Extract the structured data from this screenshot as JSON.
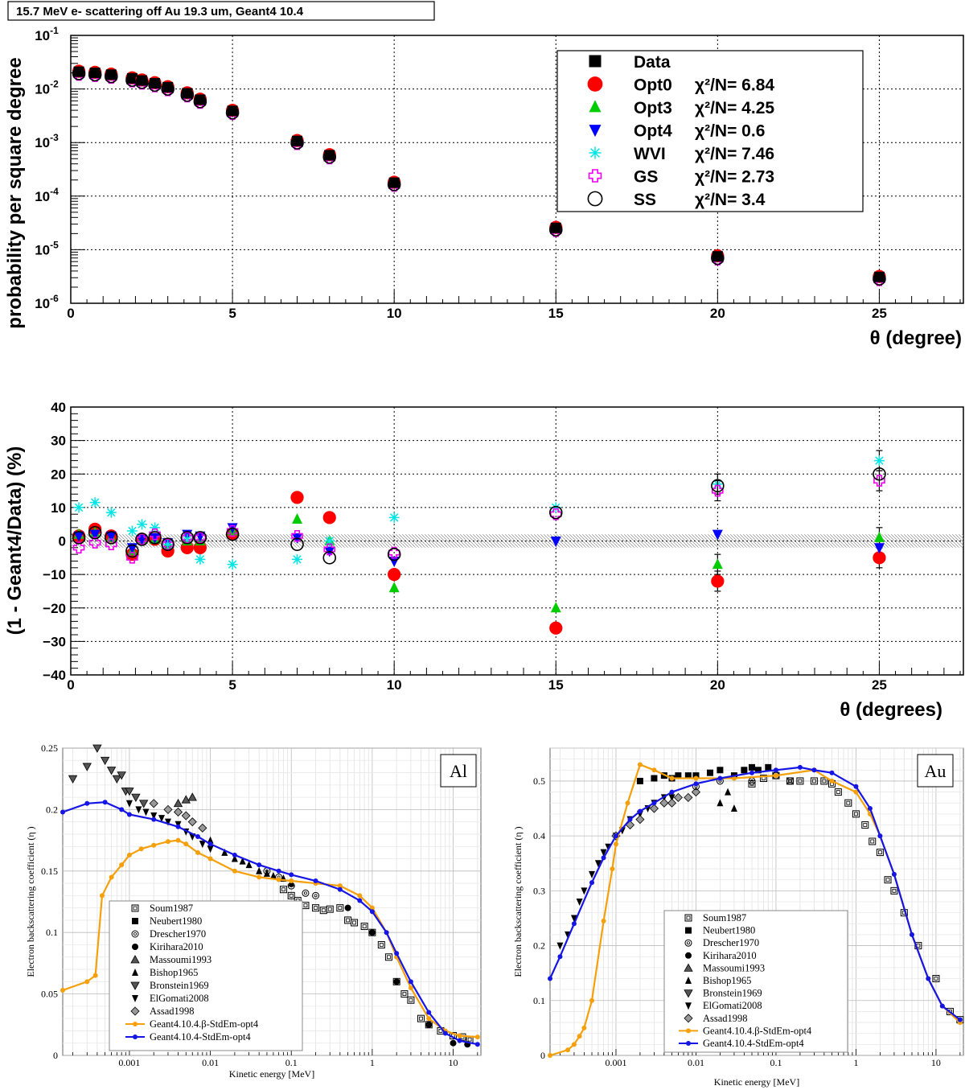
{
  "chart_data": [
    {
      "type": "scatter",
      "title": "15.7 MeV e- scattering off Au 19.3 um, Geant4 10.4",
      "xlabel": "θ (degree)",
      "ylabel": "probability per square degree",
      "xlim": [
        0,
        27.6
      ],
      "ylim": [
        1e-06,
        0.1
      ],
      "yscale": "log",
      "grid": true,
      "legend_position": "top-right",
      "x": [
        0.25,
        0.75,
        1.25,
        1.9,
        2.2,
        2.6,
        3.0,
        3.6,
        4.0,
        5.0,
        7.0,
        8.0,
        10.0,
        15.0,
        20.0,
        25.0
      ],
      "data": [
        0.021,
        0.02,
        0.0185,
        0.0158,
        0.0144,
        0.0128,
        0.0108,
        0.0083,
        0.0063,
        0.0039,
        0.00107,
        0.00058,
        0.000178,
        2.55e-05,
        7.5e-06,
        3.1e-06
      ],
      "legend": [
        {
          "name": "Data",
          "stat": ""
        },
        {
          "name": "Opt0",
          "stat": "χ²/N= 6.84"
        },
        {
          "name": "Opt3",
          "stat": "χ²/N= 4.25"
        },
        {
          "name": "Opt4",
          "stat": "χ²/N= 0.6"
        },
        {
          "name": "WVI",
          "stat": "χ²/N= 7.46"
        },
        {
          "name": "GS",
          "stat": " χ²/N= 2.73"
        },
        {
          "name": "SS",
          "stat": "χ²/N= 3.4"
        }
      ],
      "xticks": [
        "0",
        "5",
        "10",
        "15",
        "20",
        "25"
      ],
      "yticks_exp": [
        "-6",
        "-5",
        "-4",
        "-3",
        "-2",
        "-1"
      ],
      "ytick_base": "10"
    },
    {
      "type": "scatter",
      "xlabel": "θ (degrees)",
      "ylabel": "(1 - Geant4/Data) (%)",
      "xlim": [
        0,
        27.6
      ],
      "ylim": [
        -40,
        40
      ],
      "grid": true,
      "x": [
        0.25,
        0.75,
        1.25,
        1.9,
        2.2,
        2.6,
        3.0,
        3.6,
        4.0,
        5.0,
        7.0,
        8.0,
        10.0,
        15.0,
        20.0,
        25.0
      ],
      "band": [
        -2,
        2
      ],
      "series": [
        {
          "name": "Opt0",
          "values": [
            1.5,
            3.5,
            1.5,
            -4,
            0.5,
            0.5,
            -3,
            -2,
            -2,
            2,
            13,
            7,
            -10,
            -26,
            -12,
            -5
          ]
        },
        {
          "name": "Opt3",
          "values": [
            2,
            2.5,
            1,
            -3,
            0.5,
            0.5,
            -1,
            0,
            0,
            3,
            6.5,
            0,
            -14,
            -20,
            -7,
            1
          ]
        },
        {
          "name": "Opt4",
          "values": [
            1.5,
            2,
            1.5,
            -2,
            0.5,
            1,
            -0.5,
            2,
            1.5,
            4,
            1,
            -3,
            -6,
            0,
            2,
            -2
          ]
        },
        {
          "name": "WVI",
          "values": [
            10,
            11.5,
            8.5,
            3,
            5,
            4,
            -1,
            0.5,
            -5.5,
            -7,
            -5.5,
            0,
            7,
            10,
            17,
            24
          ]
        },
        {
          "name": "GS",
          "values": [
            -2,
            -0.5,
            -1,
            -5,
            0.5,
            2,
            -1,
            1,
            1,
            3,
            1.5,
            -2.5,
            -3.5,
            8,
            15,
            18
          ]
        },
        {
          "name": "SS",
          "values": [
            1,
            2.5,
            1,
            -3,
            0.5,
            1,
            -1,
            1,
            1,
            2,
            -1,
            -5,
            -4,
            8.5,
            16.5,
            20
          ]
        }
      ],
      "xticks": [
        "0",
        "5",
        "10",
        "15",
        "20",
        "25"
      ],
      "yticks": [
        "−40",
        "−30",
        "−20",
        "−10",
        "0",
        "10",
        "20",
        "30",
        "40"
      ]
    },
    {
      "type": "line",
      "element": "Al",
      "xlabel": "Kinetic energy [MeV]",
      "ylabel": "Electron backscattering coefficient (η )",
      "xscale": "log",
      "xlim": [
        0.00015,
        22
      ],
      "ylim": [
        0,
        0.25
      ],
      "grid": true,
      "legend_position": "bottom-left",
      "xticks": [
        "0.001",
        "0.01",
        "0.1",
        "1",
        "10"
      ],
      "yticks": [
        "0",
        "0.05",
        "0.1",
        "0.15",
        "0.2",
        "0.25"
      ],
      "legend": [
        "Soum1987",
        "Neubert1980",
        "Drescher1970",
        "Kirihara2010",
        "Massoumi1993",
        "Bishop1965",
        "Bronstein1969",
        "ElGomati2008",
        "Assad1998",
        "Geant4.10.4.β-StdEm-opt4",
        "Geant4.10.4-StdEm-opt4"
      ],
      "series": [
        {
          "name": "Geant4.10.4.β-StdEm-opt4",
          "x": [
            0.00015,
            0.0003,
            0.00038,
            0.00046,
            0.0006,
            0.0008,
            0.001,
            0.0014,
            0.002,
            0.003,
            0.004,
            0.005,
            0.007,
            0.01,
            0.02,
            0.04,
            0.07,
            0.1,
            0.2,
            0.4,
            0.7,
            1,
            1.5,
            2,
            3,
            5,
            8,
            12,
            20
          ],
          "values": [
            0.053,
            0.06,
            0.065,
            0.13,
            0.145,
            0.155,
            0.163,
            0.168,
            0.171,
            0.174,
            0.175,
            0.172,
            0.165,
            0.16,
            0.15,
            0.145,
            0.143,
            0.142,
            0.14,
            0.138,
            0.13,
            0.12,
            0.1,
            0.08,
            0.055,
            0.03,
            0.02,
            0.016,
            0.015
          ]
        },
        {
          "name": "Geant4.10.4-StdEm-opt4",
          "x": [
            0.00015,
            0.0003,
            0.0005,
            0.0008,
            0.001,
            0.002,
            0.004,
            0.007,
            0.01,
            0.02,
            0.04,
            0.07,
            0.1,
            0.2,
            0.4,
            0.7,
            1,
            1.5,
            2,
            3,
            5,
            8,
            12,
            20
          ],
          "values": [
            0.198,
            0.205,
            0.206,
            0.2,
            0.196,
            0.192,
            0.186,
            0.178,
            0.172,
            0.163,
            0.155,
            0.15,
            0.147,
            0.142,
            0.135,
            0.126,
            0.117,
            0.1,
            0.083,
            0.06,
            0.035,
            0.018,
            0.012,
            0.009
          ]
        }
      ],
      "experimental": {
        "Soum1987": {
          "x": [
            0.08,
            0.1,
            0.12,
            0.15,
            0.2,
            0.25,
            0.3,
            0.4,
            0.5,
            0.6,
            0.8,
            1.0,
            1.3,
            1.6,
            2.0,
            2.5,
            3.0,
            4.0,
            5.0,
            7.0,
            10,
            13,
            16
          ],
          "values": [
            0.135,
            0.13,
            0.126,
            0.122,
            0.12,
            0.118,
            0.119,
            0.12,
            0.11,
            0.108,
            0.105,
            0.1,
            0.09,
            0.08,
            0.06,
            0.05,
            0.045,
            0.03,
            0.025,
            0.02,
            0.016,
            0.015,
            0.013
          ]
        },
        "Bronstein1969": {
          "x": [
            0.0002,
            0.0003,
            0.0004,
            0.0005,
            0.0006,
            0.0007,
            0.0008,
            0.0009,
            0.001,
            0.0012,
            0.0015
          ],
          "values": [
            0.225,
            0.235,
            0.25,
            0.24,
            0.232,
            0.225,
            0.228,
            0.215,
            0.215,
            0.21,
            0.205
          ]
        },
        "ElGomati2008": {
          "x": [
            0.001,
            0.0013,
            0.0016,
            0.002,
            0.0025,
            0.003,
            0.004,
            0.005,
            0.006,
            0.008,
            0.01
          ],
          "values": [
            0.205,
            0.2,
            0.198,
            0.195,
            0.193,
            0.19,
            0.188,
            0.182,
            0.178,
            0.172,
            0.168
          ]
        },
        "Assad1998": {
          "x": [
            0.002,
            0.003,
            0.004,
            0.005,
            0.006,
            0.008
          ],
          "values": [
            0.205,
            0.2,
            0.198,
            0.195,
            0.19,
            0.185
          ]
        },
        "Massoumi1993": {
          "x": [
            0.004,
            0.005,
            0.006
          ],
          "values": [
            0.205,
            0.208,
            0.21
          ]
        },
        "Drescher1970": {
          "x": [
            0.05,
            0.07,
            0.1,
            0.15,
            0.2
          ],
          "values": [
            0.15,
            0.145,
            0.138,
            0.132,
            0.13
          ]
        },
        "Bishop1965": {
          "x": [
            0.01,
            0.015,
            0.02,
            0.025,
            0.03,
            0.04,
            0.05,
            0.06,
            0.08,
            0.1
          ],
          "values": [
            0.175,
            0.165,
            0.16,
            0.158,
            0.155,
            0.15,
            0.148,
            0.146,
            0.144,
            0.14
          ]
        },
        "Kirihara2010": {
          "x": [
            0.5,
            1,
            2,
            5,
            10,
            15
          ],
          "values": [
            0.12,
            0.1,
            0.06,
            0.025,
            0.01,
            0.009
          ]
        }
      }
    },
    {
      "type": "line",
      "element": "Au",
      "xlabel": "Kinetic energy [MeV]",
      "ylabel": "Electron backscattering coefficient (η )",
      "xscale": "log",
      "xlim": [
        0.00015,
        22
      ],
      "ylim": [
        0,
        0.56
      ],
      "grid": true,
      "legend_position": "bottom-right",
      "xticks": [
        "0.001",
        "0.01",
        "0.1",
        "1",
        "10"
      ],
      "yticks": [
        "0",
        "0.1",
        "0.2",
        "0.3",
        "0.4",
        "0.5"
      ],
      "legend": [
        "Soum1987",
        "Neubert1980",
        "Drescher1970",
        "Kirihara2010",
        "Massoumi1993",
        "Bishop1965",
        "Bronstein1969",
        "ElGomati2008",
        "Assad1998",
        "Geant4.10.4.β-StdEm-opt4",
        "Geant4.10.4-StdEm-opt4"
      ],
      "series": [
        {
          "name": "Geant4.10.4.β-StdEm-opt4",
          "x": [
            0.00015,
            0.00025,
            0.0003,
            0.00035,
            0.0004,
            0.0005,
            0.0007,
            0.0009,
            0.001,
            0.0014,
            0.002,
            0.003,
            0.005,
            0.01,
            0.03,
            0.1,
            0.3,
            0.5,
            1,
            1.5,
            2,
            3,
            5,
            8,
            12,
            20
          ],
          "values": [
            0,
            0.01,
            0.02,
            0.035,
            0.05,
            0.1,
            0.245,
            0.34,
            0.385,
            0.46,
            0.53,
            0.52,
            0.505,
            0.505,
            0.505,
            0.51,
            0.52,
            0.5,
            0.48,
            0.44,
            0.4,
            0.33,
            0.22,
            0.14,
            0.09,
            0.06
          ]
        },
        {
          "name": "Geant4.10.4-StdEm-opt4",
          "x": [
            0.00015,
            0.0002,
            0.0003,
            0.0005,
            0.0007,
            0.001,
            0.0015,
            0.002,
            0.003,
            0.005,
            0.01,
            0.02,
            0.05,
            0.1,
            0.2,
            0.3,
            0.5,
            1,
            1.5,
            2,
            3,
            5,
            8,
            12,
            20
          ],
          "values": [
            0.14,
            0.18,
            0.24,
            0.315,
            0.36,
            0.4,
            0.43,
            0.445,
            0.46,
            0.48,
            0.495,
            0.505,
            0.515,
            0.52,
            0.525,
            0.52,
            0.515,
            0.49,
            0.45,
            0.4,
            0.33,
            0.22,
            0.14,
            0.09,
            0.065
          ]
        }
      ],
      "experimental": {
        "Soum1987": {
          "x": [
            0.05,
            0.07,
            0.1,
            0.15,
            0.2,
            0.3,
            0.4,
            0.5,
            0.6,
            0.8,
            1.0,
            1.3,
            1.6,
            2.0,
            2.5,
            3.0,
            4.0,
            6.0,
            10,
            15,
            20
          ],
          "values": [
            0.495,
            0.505,
            0.51,
            0.5,
            0.5,
            0.5,
            0.5,
            0.495,
            0.48,
            0.46,
            0.44,
            0.42,
            0.39,
            0.37,
            0.32,
            0.3,
            0.26,
            0.2,
            0.14,
            0.08,
            0.065
          ]
        },
        "Neubert1980": {
          "x": [
            0.002,
            0.003,
            0.004,
            0.005,
            0.006,
            0.008,
            0.01,
            0.015,
            0.02,
            0.03,
            0.04,
            0.05,
            0.06,
            0.08
          ],
          "values": [
            0.5,
            0.505,
            0.51,
            0.505,
            0.51,
            0.51,
            0.51,
            0.515,
            0.52,
            0.51,
            0.52,
            0.525,
            0.52,
            0.525
          ]
        },
        "ElGomati2008": {
          "x": [
            0.0002,
            0.00025,
            0.0003,
            0.00035,
            0.0004,
            0.0005,
            0.0006,
            0.0007,
            0.0008,
            0.001,
            0.0012,
            0.0015,
            0.002,
            0.0025,
            0.003,
            0.004,
            0.005
          ],
          "values": [
            0.2,
            0.22,
            0.25,
            0.28,
            0.3,
            0.33,
            0.35,
            0.37,
            0.38,
            0.4,
            0.41,
            0.43,
            0.44,
            0.45,
            0.46,
            0.47,
            0.47
          ]
        },
        "Assad1998": {
          "x": [
            0.001,
            0.0015,
            0.002,
            0.003,
            0.004,
            0.005,
            0.006,
            0.008,
            0.01
          ],
          "values": [
            0.4,
            0.42,
            0.43,
            0.45,
            0.46,
            0.46,
            0.47,
            0.47,
            0.48
          ]
        },
        "Bishop1965": {
          "x": [
            0.02,
            0.025,
            0.03
          ],
          "values": [
            0.46,
            0.48,
            0.45
          ]
        },
        "Drescher1970": {
          "x": [
            0.01,
            0.02,
            0.05,
            0.1,
            0.15
          ],
          "values": [
            0.49,
            0.5,
            0.5,
            0.51,
            0.5
          ]
        }
      }
    }
  ]
}
